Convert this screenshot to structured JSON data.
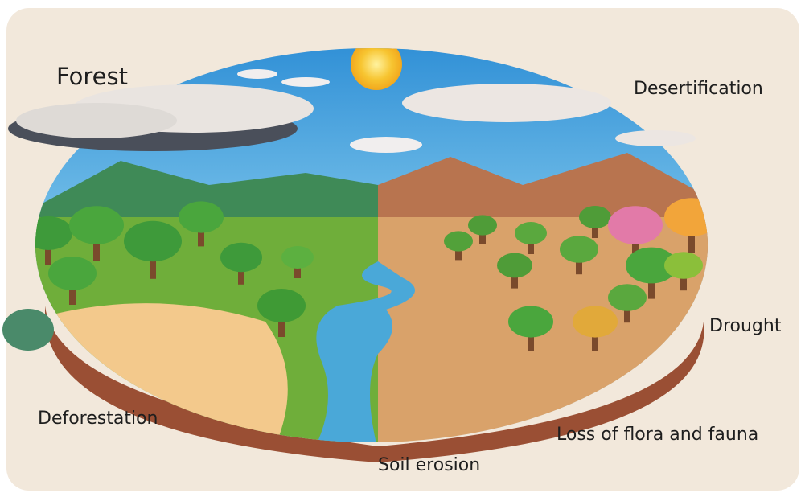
{
  "labels": {
    "forest": "Forest",
    "desertification": "Desertification",
    "drought": "Drought",
    "deforestation": "Deforestation",
    "loss_of_flora_and_fauna": "Loss of flora and fauna",
    "soil_erosion": "Soil erosion"
  }
}
